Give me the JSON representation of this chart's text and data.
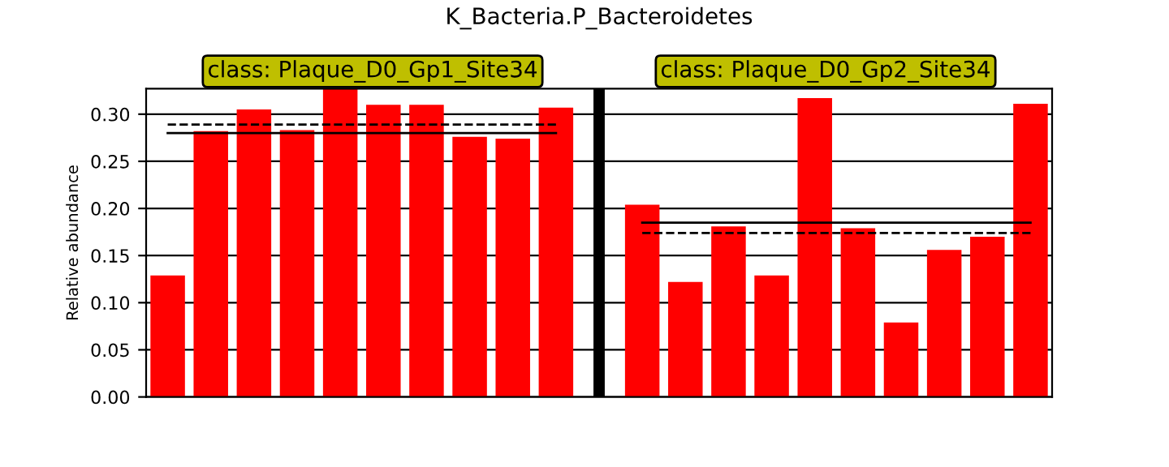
{
  "chart_data": {
    "type": "bar",
    "title": "K_Bacteria.P_Bacteroidetes",
    "ylabel": "Relative abundance",
    "categories": [
      null,
      null,
      null,
      null,
      null,
      null,
      null,
      null,
      null,
      null,
      null,
      null,
      null,
      null,
      null,
      null,
      null,
      null,
      null,
      null,
      null
    ],
    "series": [
      {
        "color": "#ff0000",
        "values": [
          0.129,
          0.282,
          0.305,
          0.283,
          0.327,
          0.31,
          0.31,
          0.276,
          0.274,
          0.307,
          null,
          0.204,
          0.122,
          0.181,
          0.129,
          0.317,
          0.179,
          0.079,
          0.156,
          0.17,
          0.311
        ]
      },
      {
        "type": "line",
        "color": "#000000",
        "line_style": "solid",
        "values": [
          0.28,
          0.28,
          0.28,
          0.28,
          0.28,
          0.28,
          0.28,
          0.28,
          0.28,
          0.28,
          null,
          null,
          null,
          null,
          null,
          null,
          null,
          null,
          null,
          null,
          null
        ]
      },
      {
        "type": "line",
        "color": "#000000",
        "line_style": "dashed",
        "values": [
          0.289,
          0.289,
          0.289,
          0.289,
          0.289,
          0.289,
          0.289,
          0.289,
          0.289,
          0.289,
          null,
          null,
          null,
          null,
          null,
          null,
          null,
          null,
          null,
          null,
          null
        ]
      },
      {
        "type": "line",
        "color": "#000000",
        "line_style": "solid",
        "values": [
          null,
          null,
          null,
          null,
          null,
          null,
          null,
          null,
          null,
          null,
          null,
          0.185,
          0.185,
          0.185,
          0.185,
          0.185,
          0.185,
          0.185,
          0.185,
          0.185,
          0.185
        ]
      },
      {
        "type": "line",
        "color": "#000000",
        "line_style": "dashed",
        "values": [
          null,
          null,
          null,
          null,
          null,
          null,
          null,
          null,
          null,
          null,
          null,
          0.174,
          0.174,
          0.174,
          0.174,
          0.174,
          0.174,
          0.174,
          0.174,
          0.174,
          0.174
        ]
      }
    ],
    "annotations": [
      "class: Plaque_D0_Gp1_Site34",
      "class: Plaque_D0_Gp2_Site34"
    ],
    "ylim": [
      0,
      0.327
    ],
    "yticks": [
      {
        "value": 0,
        "label": "0.00"
      },
      {
        "value": 0.05,
        "label": "0.05"
      },
      {
        "value": 0.1,
        "label": "0.10"
      },
      {
        "value": 0.15,
        "label": "0.15"
      },
      {
        "value": 0.2,
        "label": "0.20"
      },
      {
        "value": 0.25,
        "label": "0.25"
      },
      {
        "value": 0.3,
        "label": "0.30"
      }
    ],
    "grid": "y",
    "tick_labels": "y"
  }
}
